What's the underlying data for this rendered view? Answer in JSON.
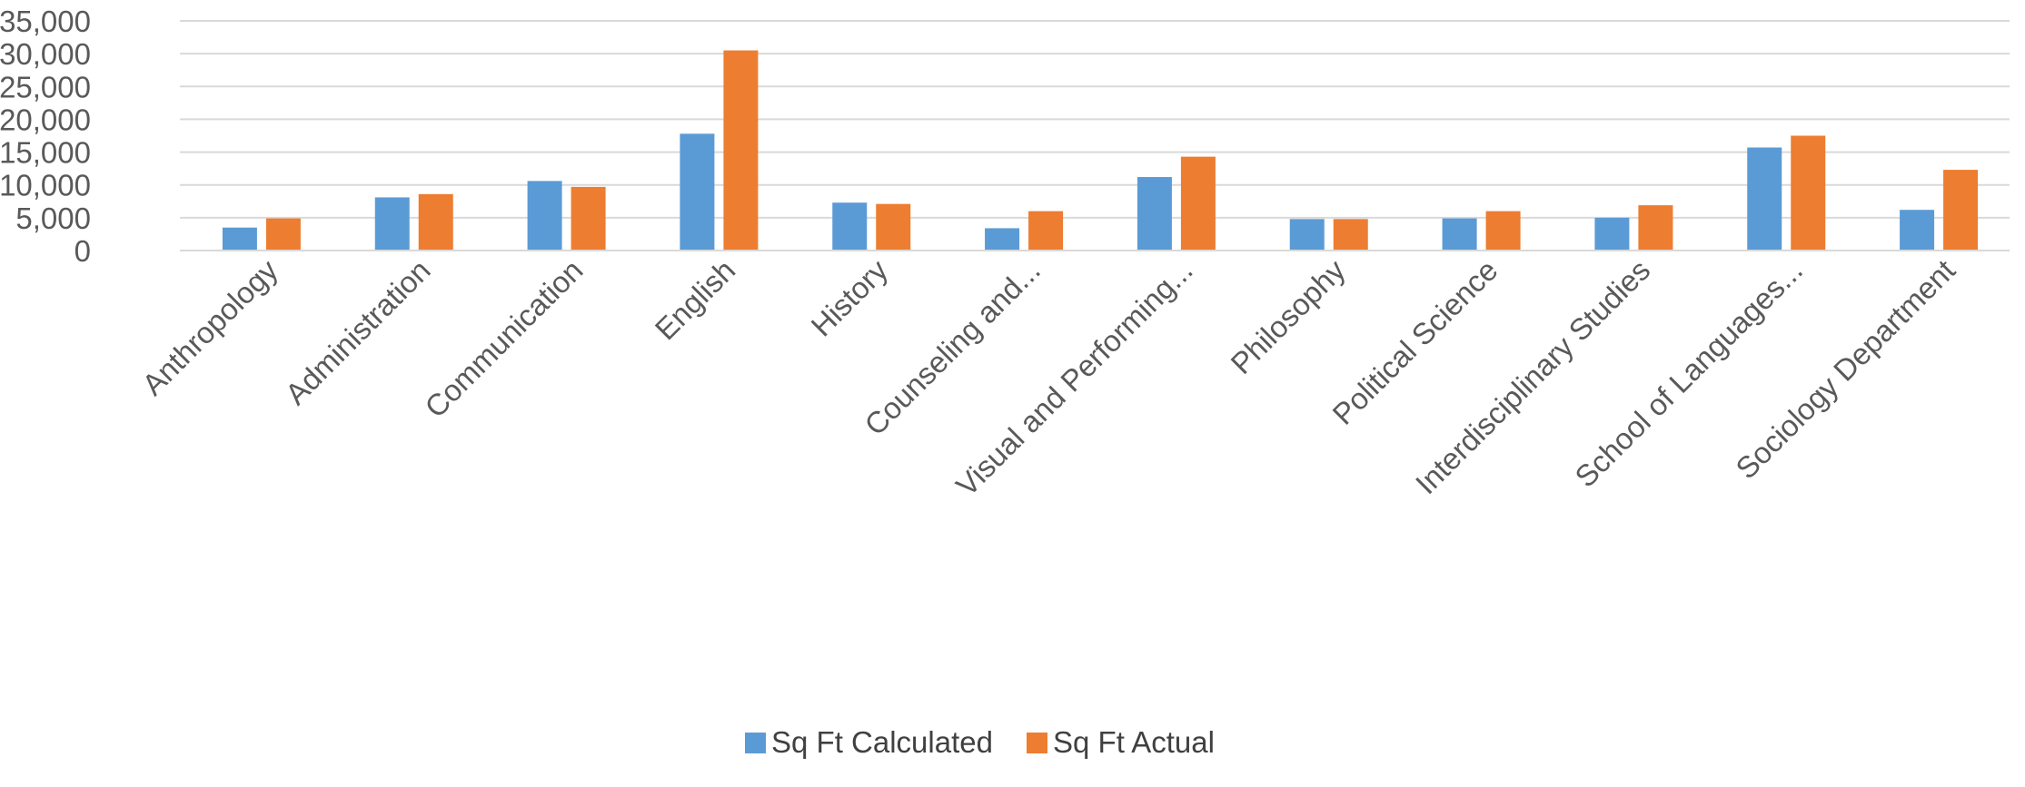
{
  "chart_data": {
    "type": "bar",
    "categories": [
      "Anthropology",
      "Administration",
      "Communication",
      "English",
      "History",
      "Counseling and...",
      "Visual and Performing...",
      "Philosophy",
      "Political Science",
      "Interdisciplinary Studies",
      "School of Languages...",
      "Sociology Department"
    ],
    "series": [
      {
        "name": "Sq Ft Calculated",
        "color": "#5B9BD5",
        "values": [
          3500,
          8100,
          10600,
          17800,
          7300,
          3400,
          11200,
          4800,
          4900,
          5000,
          15700,
          6200
        ]
      },
      {
        "name": "Sq Ft Actual",
        "color": "#ED7D31",
        "values": [
          4900,
          8600,
          9700,
          30500,
          7100,
          6000,
          14300,
          4800,
          6000,
          6900,
          17500,
          12300
        ]
      }
    ],
    "y_ticks": [
      "0",
      "5,000",
      "10,000",
      "15,000",
      "20,000",
      "25,000",
      "30,000",
      "35,000"
    ],
    "ylim": [
      0,
      35000
    ],
    "y_step": 5000,
    "grid": true,
    "gridline_color": "#D9D9D9",
    "legend_position": "bottom",
    "title": "",
    "xlabel": "",
    "ylabel": ""
  }
}
